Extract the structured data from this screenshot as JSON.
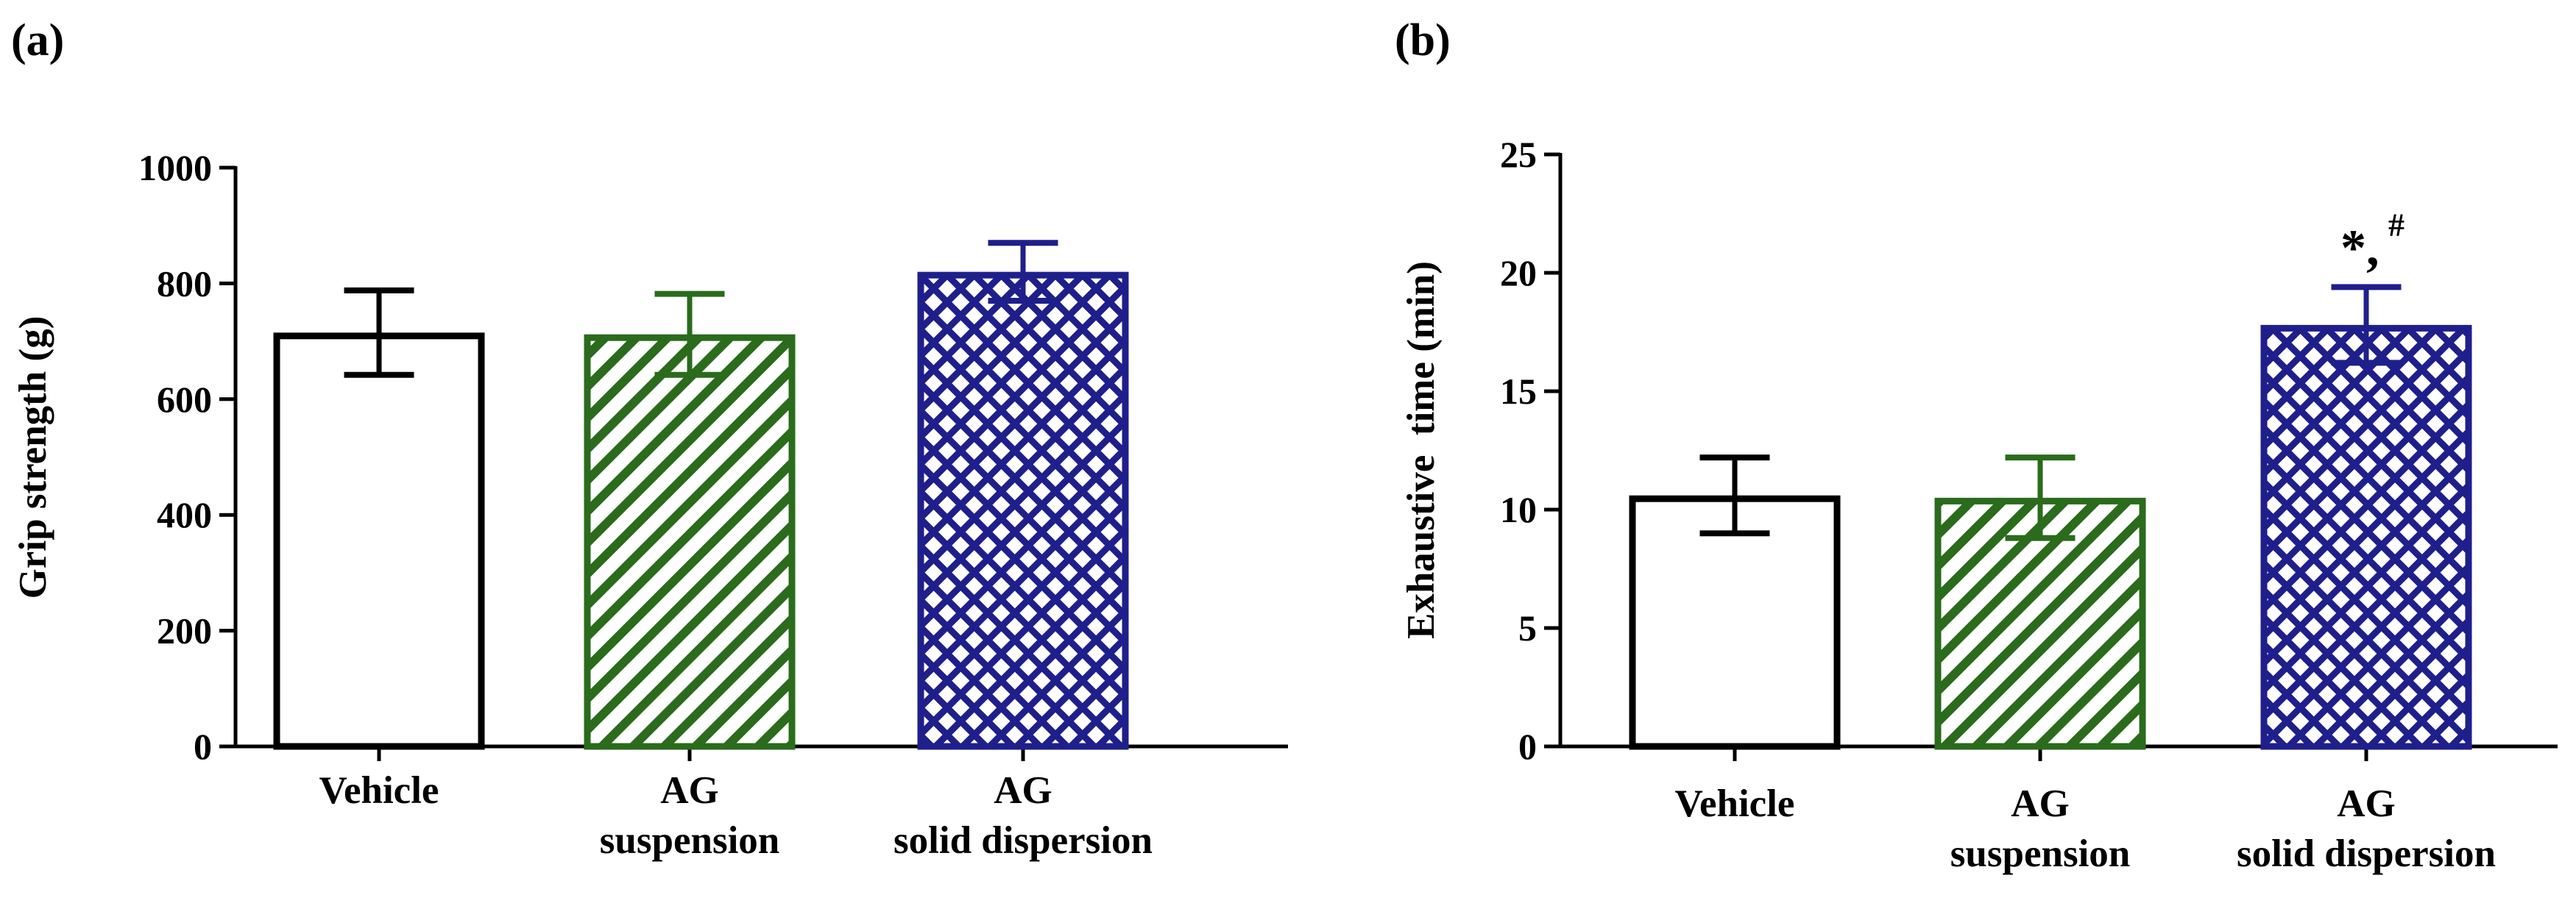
{
  "figure": {
    "panels": [
      "(a)",
      "(b)"
    ]
  },
  "styles": {
    "vehicle": {
      "stroke": "#000000",
      "pattern": "none"
    },
    "suspension": {
      "stroke": "#2a6b1c",
      "pattern": "diagonal"
    },
    "dispersion": {
      "stroke": "#1f1f8c",
      "pattern": "crosshatch"
    }
  },
  "chart_data": [
    {
      "type": "bar",
      "panel": "(a)",
      "title": "",
      "xlabel": "",
      "ylabel": "Grip strength (g)",
      "ylim": [
        0,
        1000
      ],
      "yticks": [
        0,
        200,
        400,
        600,
        800,
        1000
      ],
      "ytick_labels": [
        "0",
        "200",
        "400",
        "600",
        "800",
        "1000"
      ],
      "categories": [
        [
          "Vehicle"
        ],
        [
          "AG",
          "suspension"
        ],
        [
          "AG",
          "solid dispersion"
        ]
      ],
      "style_keys": [
        "vehicle",
        "suspension",
        "dispersion"
      ],
      "values": [
        715,
        712,
        820
      ],
      "errors": [
        73,
        70,
        50
      ],
      "annotations": []
    },
    {
      "type": "bar",
      "panel": "(b)",
      "title": "",
      "xlabel": "",
      "ylabel": "Exhaustive  time (min)",
      "ylim": [
        0,
        25
      ],
      "yticks": [
        0,
        5,
        10,
        15,
        20,
        25
      ],
      "ytick_labels": [
        "0",
        "5",
        "10",
        "15",
        "20",
        "25"
      ],
      "categories": [
        [
          "Vehicle"
        ],
        [
          "AG",
          "suspension"
        ],
        [
          "AG",
          "solid dispersion"
        ]
      ],
      "style_keys": [
        "vehicle",
        "suspension",
        "dispersion"
      ],
      "values": [
        10.6,
        10.5,
        17.8
      ],
      "errors": [
        1.6,
        1.7,
        1.6
      ],
      "annotations": [
        {
          "bar_index": 2,
          "text": "*,",
          "superscript": "#"
        }
      ]
    }
  ]
}
